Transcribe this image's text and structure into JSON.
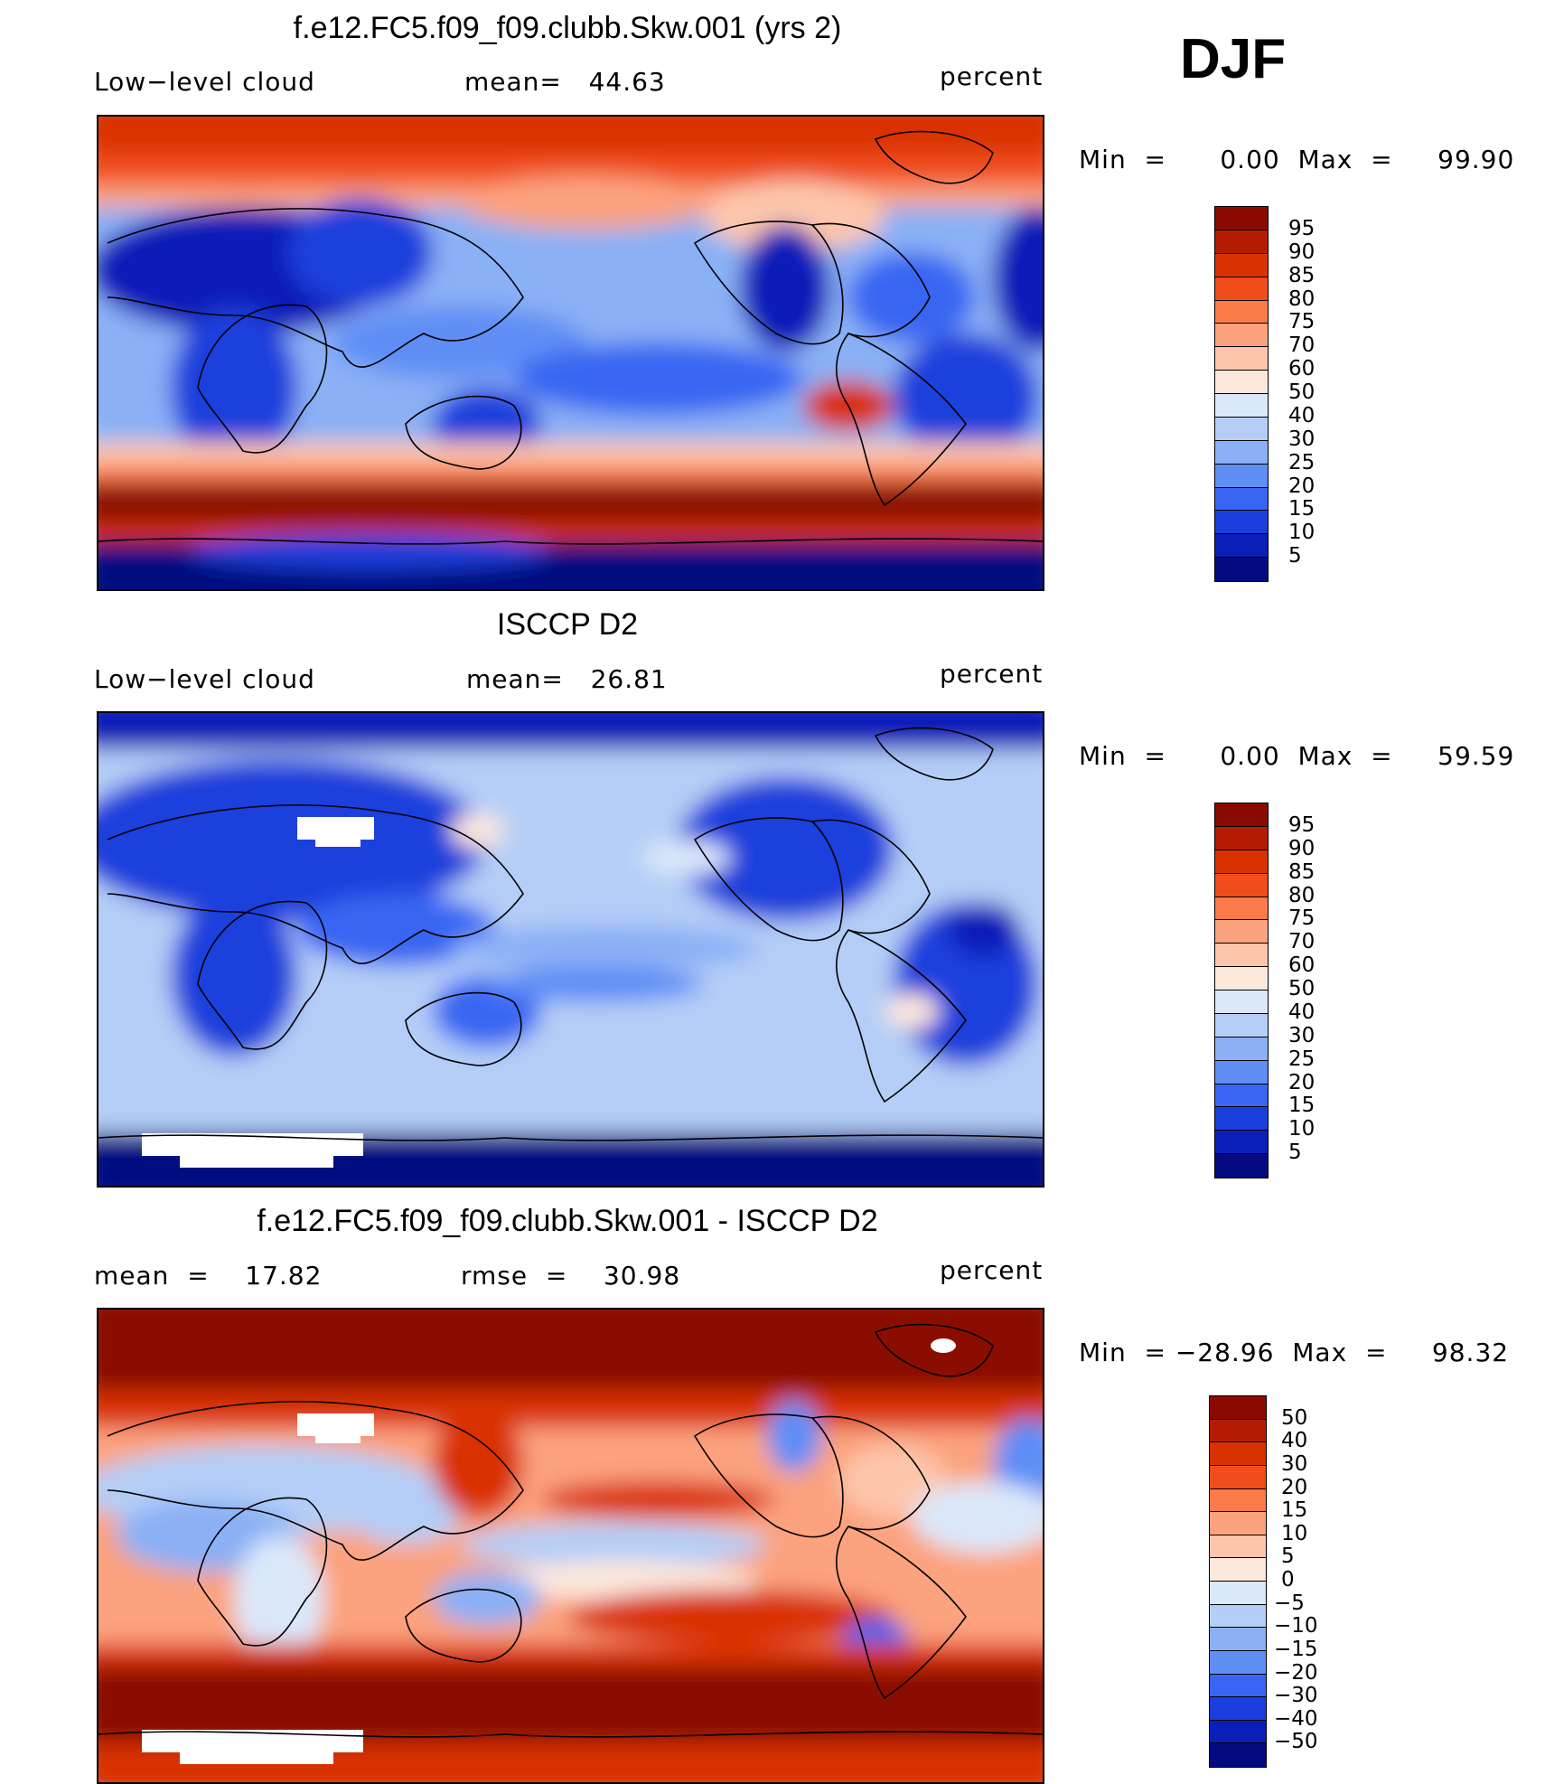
{
  "season": "DJF",
  "panels": [
    {
      "id": "model",
      "title": "f.e12.FC5.f09_f09.clubb.Skw.001 (yrs 2)",
      "left_label": "Low−level cloud",
      "middle_label": "mean=   44.63",
      "units": "percent",
      "minmax": "Min  =      0.00  Max  =     99.90",
      "mean": 44.63,
      "min": 0.0,
      "max": 99.9,
      "colorbar": {
        "labels": [
          "95",
          "90",
          "85",
          "80",
          "75",
          "70",
          "60",
          "50",
          "40",
          "30",
          "25",
          "20",
          "15",
          "10",
          "5"
        ],
        "colors": [
          "#8a0a00",
          "#b31c00",
          "#d93200",
          "#f04d1a",
          "#fb7a48",
          "#fca27e",
          "#fdc6ac",
          "#fde8dc",
          "#dbe8fa",
          "#b4cef7",
          "#8ab0f5",
          "#5f8ef5",
          "#3866f2",
          "#1a3fdc",
          "#0a1fb8",
          "#040a80"
        ]
      }
    },
    {
      "id": "obs",
      "title": "ISCCP D2",
      "left_label": "Low−level cloud",
      "middle_label": "mean=   26.81",
      "units": "percent",
      "minmax": "Min  =      0.00  Max  =     59.59",
      "mean": 26.81,
      "min": 0.0,
      "max": 59.59,
      "colorbar": {
        "labels": [
          "95",
          "90",
          "85",
          "80",
          "75",
          "70",
          "60",
          "50",
          "40",
          "30",
          "25",
          "20",
          "15",
          "10",
          "5"
        ],
        "colors": [
          "#8a0a00",
          "#b31c00",
          "#d93200",
          "#f04d1a",
          "#fb7a48",
          "#fca27e",
          "#fdc6ac",
          "#fde8dc",
          "#dbe8fa",
          "#b4cef7",
          "#8ab0f5",
          "#5f8ef5",
          "#3866f2",
          "#1a3fdc",
          "#0a1fb8",
          "#040a80"
        ]
      }
    },
    {
      "id": "diff",
      "title": "f.e12.FC5.f09_f09.clubb.Skw.001 - ISCCP D2",
      "left_label": "mean  =    17.82",
      "middle_label": "rmse  =    30.98",
      "units": "percent",
      "minmax": "Min  = −28.96  Max  =     98.32",
      "mean": 17.82,
      "rmse": 30.98,
      "min": -28.96,
      "max": 98.32,
      "colorbar": {
        "labels": [
          "50",
          "40",
          "30",
          "20",
          "15",
          "10",
          "5",
          "0",
          "−5",
          "−10",
          "−15",
          "−20",
          "−30",
          "−40",
          "−50"
        ],
        "colors": [
          "#8a0a00",
          "#b31c00",
          "#d93200",
          "#f04d1a",
          "#fb7a48",
          "#fca27e",
          "#fdc6ac",
          "#fde8dc",
          "#dbe8fa",
          "#b4cef7",
          "#8ab0f5",
          "#5f8ef5",
          "#3866f2",
          "#1a3fdc",
          "#0a1fb8",
          "#040a80"
        ]
      }
    }
  ]
}
